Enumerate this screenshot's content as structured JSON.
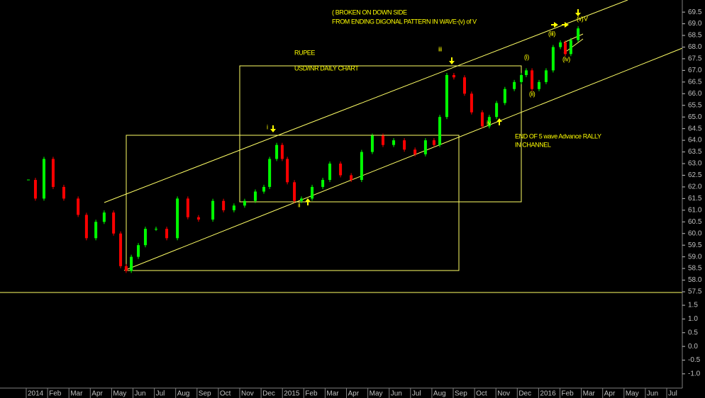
{
  "chart_data": [
    {
      "type": "candlestick",
      "annotations": [
        "( BROKEN ON DOWN SIDE",
        "FROM ENDING DIGONAL PATTERN IN WAVE-(v) of V",
        "RUPEE",
        "USD/INR DAILY CHART",
        "END OF 5 wave Advance RALLY",
        "IN CHANNEL",
        "i",
        "ii",
        "iii",
        "iv",
        "(i)",
        "(ii)",
        "(iii)",
        "(iv)",
        "(v)",
        "V"
      ],
      "x": [
        0.1,
        0.43,
        0.83,
        1.26,
        1.76,
        2.43,
        2.82,
        3.26,
        3.65,
        4.09,
        4.42,
        4.68,
        4.92,
        5.25,
        5.58,
        6.08,
        6.58,
        7.08,
        7.57,
        8.07,
        8.74,
        9.24,
        9.73,
        10.23,
        10.73,
        11.13,
        11.4,
        11.73,
        11.99,
        12.23,
        12.56,
        12.89,
        13.39,
        13.89,
        14.22,
        14.72,
        15.22,
        15.71,
        16.21,
        16.71,
        17.21,
        17.71,
        18.21,
        18.7,
        19.1,
        19.37,
        19.7,
        20.03,
        20.53,
        20.86,
        21.36,
        21.69,
        22.03,
        22.42,
        22.86,
        23.19,
        23.42,
        23.69,
        24.02,
        24.35,
        24.68,
        25.02,
        25.25,
        25.51,
        25.85
      ],
      "values": [
        62.3,
        61.5,
        63.2,
        62.0,
        61.5,
        60.8,
        59.8,
        60.5,
        60.9,
        60.0,
        58.6,
        58.4,
        59.0,
        59.5,
        60.2,
        60.2,
        59.8,
        61.5,
        60.7,
        60.6,
        61.4,
        61.0,
        61.2,
        61.4,
        61.8,
        62.0,
        63.2,
        63.8,
        63.2,
        62.2,
        61.4,
        61.5,
        62.0,
        62.3,
        63.0,
        62.5,
        62.3,
        63.5,
        64.2,
        63.8,
        64.0,
        63.6,
        63.4,
        64.0,
        63.8,
        65.0,
        66.8,
        66.7,
        66.0,
        65.2,
        64.6,
        65.0,
        65.6,
        66.2,
        66.5,
        66.8,
        67.0,
        66.2,
        66.5,
        67.0,
        68.0,
        68.2,
        67.7,
        68.3,
        68.8
      ],
      "up_color": "#00ff00",
      "down_color": "#ff0000",
      "ylim": [
        57.47,
        70.02
      ],
      "yticks": [
        57.5,
        {
          "value": 58,
          "label": "58.0"
        },
        58.5,
        {
          "value": 59,
          "label": "59.0"
        },
        59.5,
        {
          "value": 60,
          "label": "60.0"
        },
        60.5,
        {
          "value": 61,
          "label": "61.0"
        },
        61.5,
        {
          "value": 62,
          "label": "62.0"
        },
        62.5,
        {
          "value": 63,
          "label": "63.0"
        },
        63.5,
        {
          "value": 64,
          "label": "64.0"
        },
        64.5,
        {
          "value": 65,
          "label": "65.0"
        },
        65.5,
        {
          "value": 66,
          "label": "66.0"
        },
        66.5,
        {
          "value": 67,
          "label": "67.0"
        },
        67.5,
        {
          "value": 68,
          "label": "68.0"
        },
        68.5,
        {
          "value": 69,
          "label": "69.0"
        },
        69.5
      ],
      "xlim": [
        0,
        30.73
      ],
      "xticks": [
        {
          "value": 0,
          "label": "2014"
        },
        {
          "value": 1,
          "label": "Feb"
        },
        {
          "value": 2,
          "label": "Mar"
        },
        {
          "value": 3,
          "label": "Apr"
        },
        {
          "value": 4,
          "label": "May"
        },
        {
          "value": 5,
          "label": "Jun"
        },
        {
          "value": 6,
          "label": "Jul"
        },
        {
          "value": 7,
          "label": "Aug"
        },
        {
          "value": 8,
          "label": "Sep"
        },
        {
          "value": 9,
          "label": "Oct"
        },
        {
          "value": 10,
          "label": "Nov"
        },
        {
          "value": 11,
          "label": "Dec"
        },
        {
          "value": 12,
          "label": "2015"
        },
        {
          "value": 13,
          "label": "Feb"
        },
        {
          "value": 14,
          "label": "Mar"
        },
        {
          "value": 15,
          "label": "Apr"
        },
        {
          "value": 16,
          "label": "May"
        },
        {
          "value": 17,
          "label": "Jun"
        },
        {
          "value": 18,
          "label": "Jul"
        },
        {
          "value": 19,
          "label": "Aug"
        },
        {
          "value": 20,
          "label": "Sep"
        },
        {
          "value": 21,
          "label": "Oct"
        },
        {
          "value": 22,
          "label": "Nov"
        },
        {
          "value": 23,
          "label": "Dec"
        },
        {
          "value": 24,
          "label": "2016"
        },
        {
          "value": 25,
          "label": "Feb"
        },
        {
          "value": 26,
          "label": "Mar"
        },
        {
          "value": 27,
          "label": "Apr"
        },
        {
          "value": 28,
          "label": "May"
        },
        {
          "value": 29,
          "label": "Jun"
        },
        {
          "value": 30,
          "label": "Jul"
        }
      ]
    },
    {
      "ylim": [
        -1.52,
        1.94
      ],
      "yticks": [
        1.5,
        {
          "value": 1,
          "label": "1.0"
        },
        0.5,
        {
          "value": 0,
          "label": "0.0"
        },
        -0.5,
        {
          "value": -1,
          "label": "-1.0"
        }
      ]
    }
  ]
}
